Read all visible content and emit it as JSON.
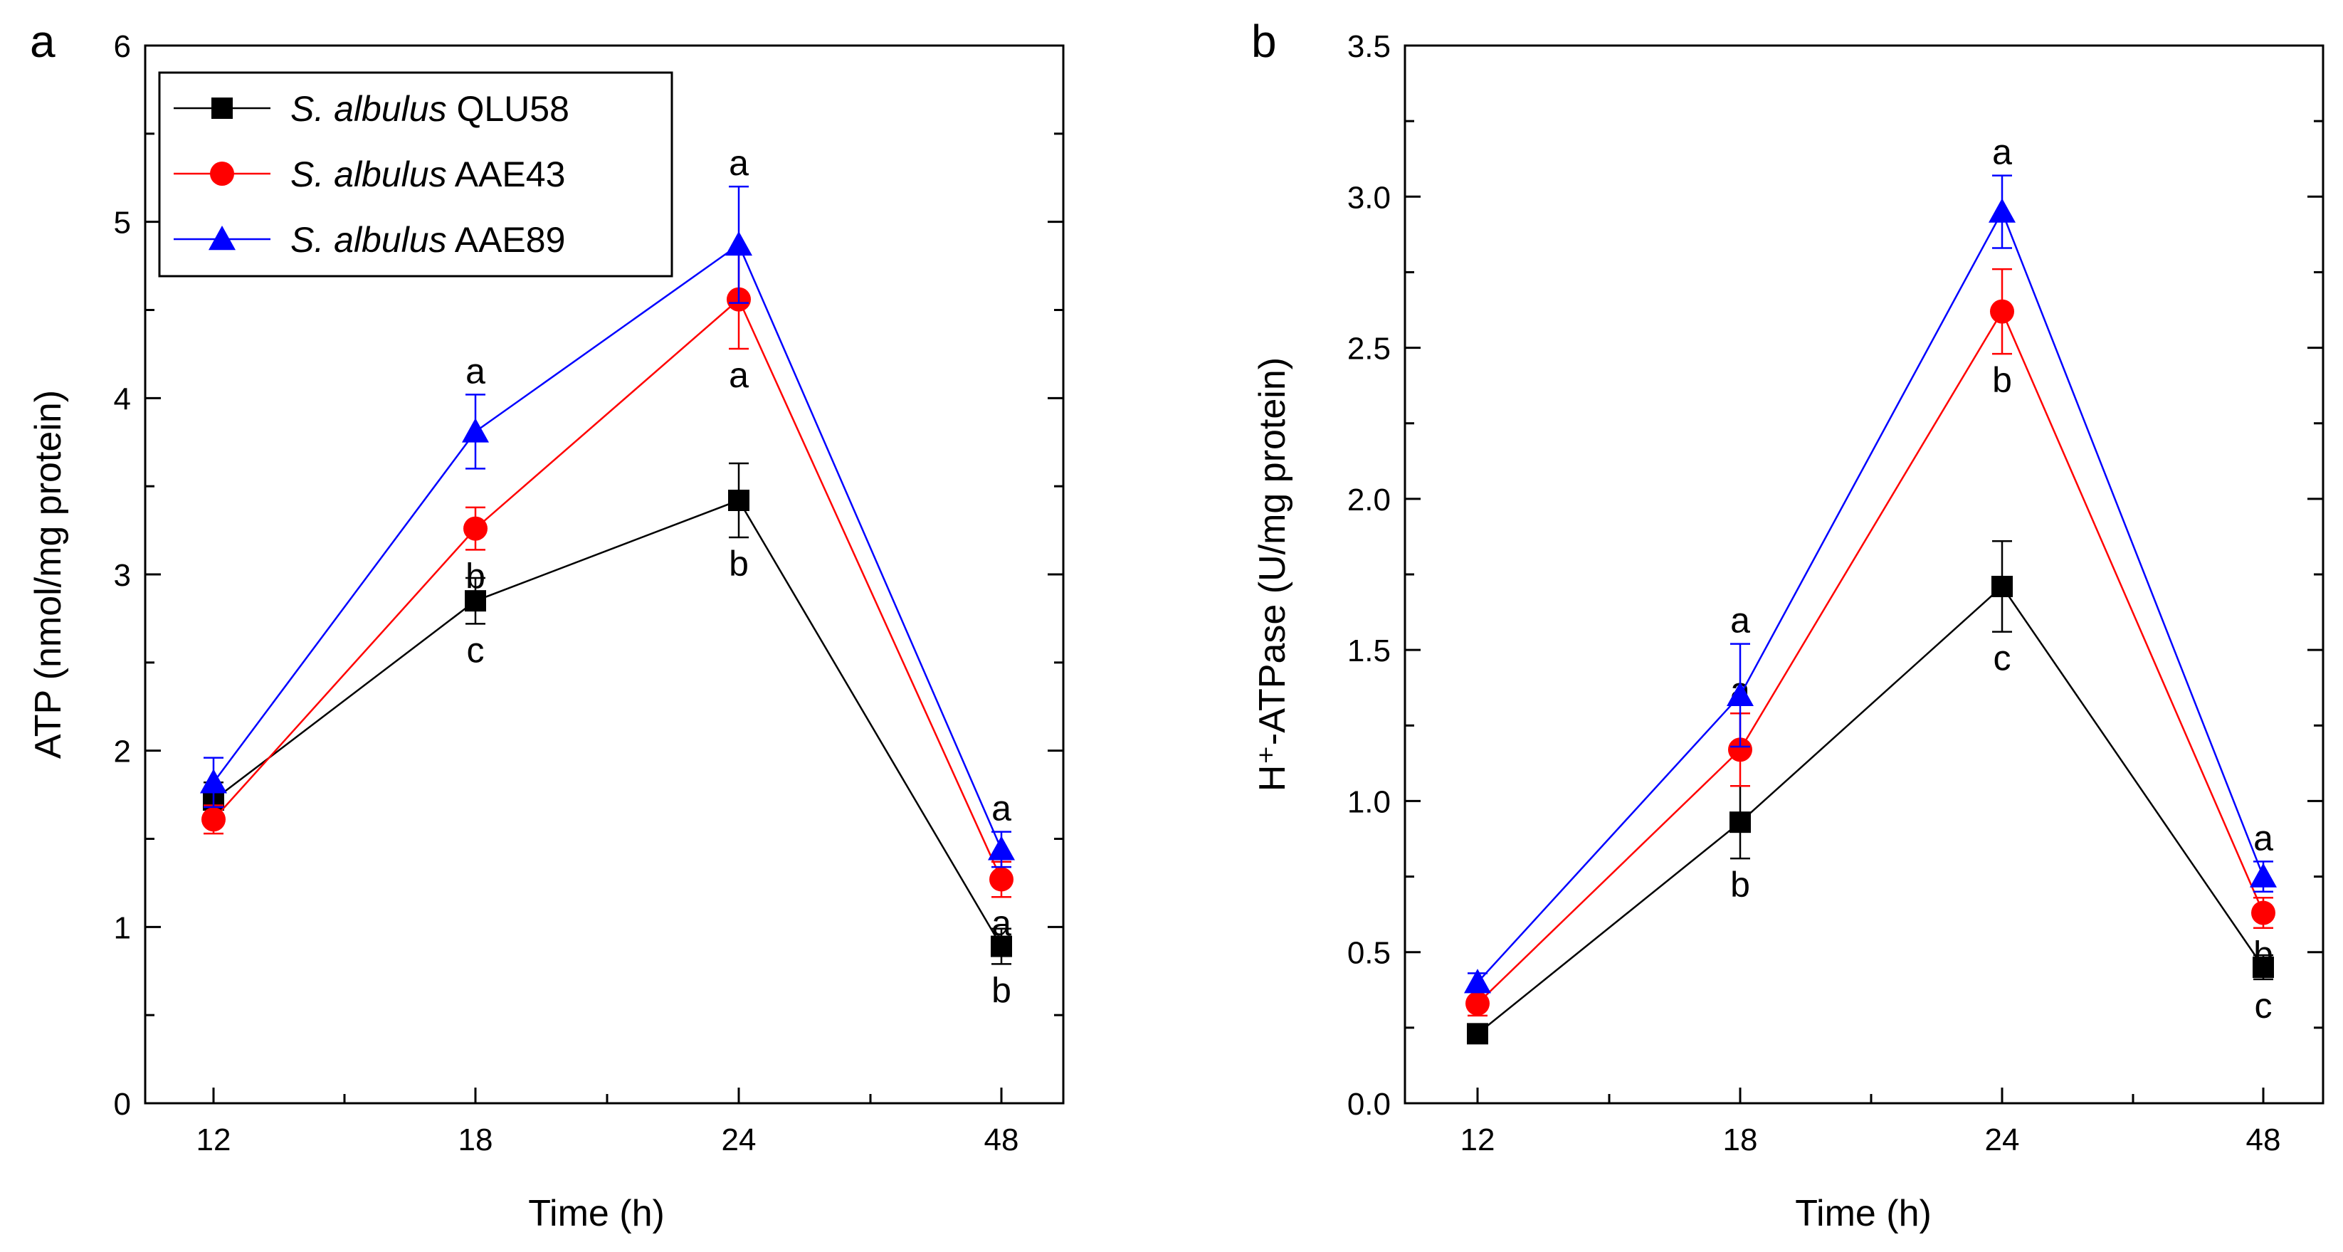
{
  "chart_data": [
    {
      "type": "line",
      "panel_label": "a",
      "title": "",
      "xlabel": "Time (h)",
      "ylabel": "ATP (nmol/mg protein)",
      "categories": [
        "12",
        "18",
        "24",
        "48"
      ],
      "ylim": [
        0,
        6
      ],
      "yticks": [
        "0",
        "1",
        "2",
        "3",
        "4",
        "5",
        "6"
      ],
      "legend_position": "top-left",
      "series": [
        {
          "name_italic": "S. albulus",
          "name_rest": " QLU58",
          "color": "#000000",
          "marker": "square",
          "values": [
            1.72,
            2.85,
            3.42,
            0.89
          ],
          "errors": [
            0.1,
            0.13,
            0.21,
            0.1
          ],
          "letters": [
            "",
            "c",
            "b",
            "b"
          ],
          "letter_pos": [
            "",
            "below",
            "below",
            "below"
          ]
        },
        {
          "name_italic": "S. albulus",
          "name_rest": " AAE43",
          "color": "#ff0000",
          "marker": "circle",
          "values": [
            1.61,
            3.26,
            4.56,
            1.27
          ],
          "errors": [
            0.08,
            0.12,
            0.28,
            0.1
          ],
          "letters": [
            "",
            "b",
            "a",
            "a"
          ],
          "letter_pos": [
            "",
            "below",
            "below",
            "below"
          ]
        },
        {
          "name_italic": "S. albulus",
          "name_rest": " AAE89",
          "color": "#0000ff",
          "marker": "triangle",
          "values": [
            1.82,
            3.81,
            4.87,
            1.44
          ],
          "errors": [
            0.14,
            0.21,
            0.33,
            0.1
          ],
          "letters": [
            "",
            "a",
            "a",
            "a"
          ],
          "letter_pos": [
            "",
            "above",
            "above",
            "above"
          ]
        }
      ]
    },
    {
      "type": "line",
      "panel_label": "b",
      "title": "",
      "xlabel": "Time (h)",
      "ylabel": "H⁺-ATPase (U/mg protein)",
      "categories": [
        "12",
        "18",
        "24",
        "48"
      ],
      "ylim": [
        0,
        3.5
      ],
      "yticks": [
        "0.0",
        "0.5",
        "1.0",
        "1.5",
        "2.0",
        "2.5",
        "3.0",
        "3.5"
      ],
      "series": [
        {
          "name": "S. albulus QLU58",
          "color": "#000000",
          "marker": "square",
          "values": [
            0.23,
            0.93,
            1.71,
            0.45
          ],
          "errors": [
            0.03,
            0.12,
            0.15,
            0.04
          ],
          "letters": [
            "",
            "b",
            "c",
            "c"
          ],
          "letter_pos": [
            "",
            "below",
            "below",
            "below"
          ]
        },
        {
          "name": "S. albulus AAE43",
          "color": "#ff0000",
          "marker": "circle",
          "values": [
            0.33,
            1.17,
            2.62,
            0.63
          ],
          "errors": [
            0.04,
            0.12,
            0.14,
            0.05
          ],
          "letters": [
            "",
            "a",
            "b",
            "b"
          ],
          "letter_pos": [
            "",
            "above",
            "below",
            "below"
          ]
        },
        {
          "name": "S. albulus AAE89",
          "color": "#0000ff",
          "marker": "triangle",
          "values": [
            0.4,
            1.35,
            2.95,
            0.75
          ],
          "errors": [
            0.03,
            0.17,
            0.12,
            0.05
          ],
          "letters": [
            "",
            "a",
            "a",
            "a"
          ],
          "letter_pos": [
            "",
            "above",
            "above",
            "above"
          ]
        }
      ]
    }
  ]
}
